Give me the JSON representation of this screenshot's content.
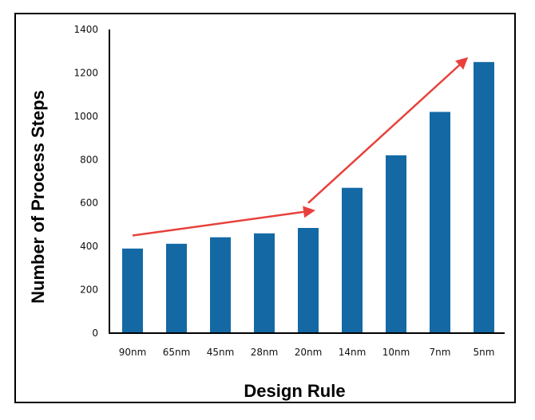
{
  "chart_data": {
    "type": "bar",
    "categories": [
      "90nm",
      "65nm",
      "45nm",
      "28nm",
      "20nm",
      "14nm",
      "10nm",
      "7nm",
      "5nm"
    ],
    "values": [
      390,
      412,
      442,
      460,
      485,
      670,
      820,
      1020,
      1250
    ],
    "xlabel": "Design Rule",
    "ylabel": "Number of Process Steps",
    "ylim": [
      0,
      1400
    ],
    "yticks": [
      0,
      200,
      400,
      600,
      800,
      1000,
      1200,
      1400
    ],
    "grid": false,
    "legend": "none",
    "colors": {
      "bar": "#1469a5",
      "arrow": "#e8413c",
      "axis": "#000000"
    },
    "annotations": [
      {
        "type": "arrow",
        "from": {
          "x": "90nm",
          "y": 450
        },
        "to": {
          "x": "20nm",
          "y": 565
        }
      },
      {
        "type": "arrow",
        "from": {
          "x": "20nm",
          "y": 600
        },
        "to": {
          "x": "5nm",
          "y": 1265
        }
      }
    ]
  }
}
